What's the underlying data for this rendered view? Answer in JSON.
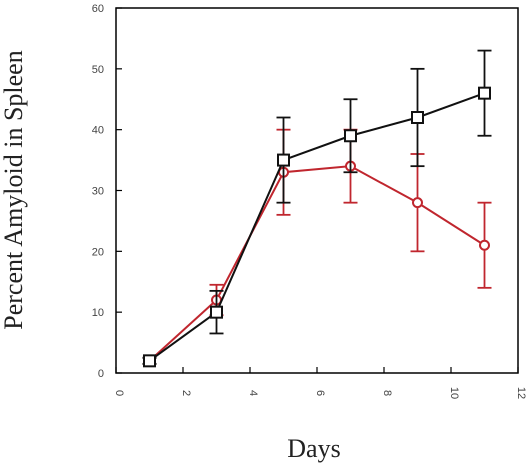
{
  "chart_data": {
    "type": "line",
    "title": "",
    "xlabel": "Days",
    "ylabel": "Percent Amyloid in Spleen",
    "xlim": [
      0,
      12
    ],
    "ylim": [
      0,
      60
    ],
    "x_ticks": [
      0,
      2,
      4,
      6,
      8,
      10,
      12
    ],
    "y_ticks": [
      0,
      10,
      20,
      30,
      40,
      50,
      60
    ],
    "x_tick_labels": [
      "0",
      "2",
      "4",
      "6",
      "8",
      "10",
      "12"
    ],
    "y_tick_labels": [
      "0",
      "10",
      "20",
      "30",
      "40",
      "50",
      "60"
    ],
    "grid": false,
    "legend": "none",
    "series": [
      {
        "marker": "square",
        "color": "#111111",
        "x": [
          1,
          3,
          5,
          7,
          9,
          11
        ],
        "y": [
          2,
          10,
          35,
          39,
          42,
          46
        ],
        "err": [
          0.5,
          3.5,
          7,
          6,
          8,
          7
        ]
      },
      {
        "marker": "circle",
        "color": "#c0262e",
        "x": [
          1,
          3,
          5,
          7,
          9,
          11
        ],
        "y": [
          2,
          12,
          33,
          34,
          28,
          21
        ],
        "err": [
          0.5,
          2.5,
          7,
          6,
          8,
          7
        ]
      }
    ]
  }
}
